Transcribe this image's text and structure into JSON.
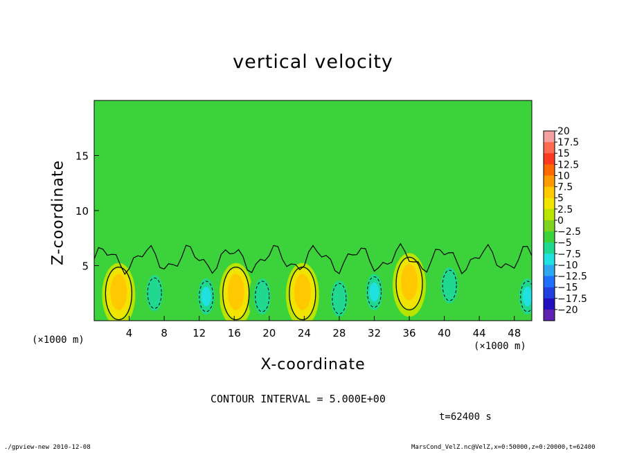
{
  "chart_data": {
    "type": "heatmap",
    "title": "vertical velocity",
    "xlabel": "X-coordinate",
    "ylabel": "Z-coordinate",
    "x_unit": "(×1000 m)",
    "xlim": [
      0,
      50
    ],
    "ylim": [
      0,
      20
    ],
    "x_ticks": [
      4,
      8,
      12,
      16,
      20,
      24,
      28,
      32,
      36,
      40,
      44,
      48
    ],
    "y_ticks": [
      5,
      10,
      15
    ],
    "colorbar": {
      "levels": [
        20,
        17.5,
        15,
        12.5,
        10,
        7.5,
        5,
        2.5,
        0,
        -2.5,
        -5,
        -7.5,
        -10,
        -12.5,
        -15,
        -17.5,
        -20
      ],
      "colors": [
        "#f4a0a0",
        "#ff6a50",
        "#ff3a20",
        "#ff6a00",
        "#ff9a00",
        "#ffc800",
        "#f0e400",
        "#b8e400",
        "#7ed321",
        "#3cd23c",
        "#20d890",
        "#20e0e0",
        "#30a8f0",
        "#2070ff",
        "#2040e0",
        "#2010c0",
        "#6020b0"
      ]
    },
    "updrafts": [
      {
        "x": 2.8,
        "z": 2.6,
        "w": 9.5
      },
      {
        "x": 16.2,
        "z": 2.6,
        "w": 8.5
      },
      {
        "x": 23.8,
        "z": 2.6,
        "w": 9.5
      },
      {
        "x": 36.0,
        "z": 3.5,
        "w": 9.0
      }
    ],
    "downdrafts": [
      {
        "x": 6.9,
        "z": 2.5,
        "w": -4.5
      },
      {
        "x": 12.8,
        "z": 2.2,
        "w": -6.0
      },
      {
        "x": 19.2,
        "z": 2.2,
        "w": -5.0
      },
      {
        "x": 28.0,
        "z": 2.0,
        "w": -4.0
      },
      {
        "x": 32.0,
        "z": 2.6,
        "w": -5.5
      },
      {
        "x": 40.6,
        "z": 3.2,
        "w": -4.5
      },
      {
        "x": 49.5,
        "z": 2.2,
        "w": -5.5
      }
    ]
  },
  "labels": {
    "contour_interval": "CONTOUR INTERVAL = 5.000E+00",
    "time": "t=62400 s",
    "x_unit_left": "(×1000 m)",
    "x_unit_right": "(×1000 m)",
    "footer_left": "./gpview-new  2010-12-08",
    "footer_right": "MarsCond_VelZ.nc@VelZ,x=0:50000,z=0:20000,t=62400"
  }
}
